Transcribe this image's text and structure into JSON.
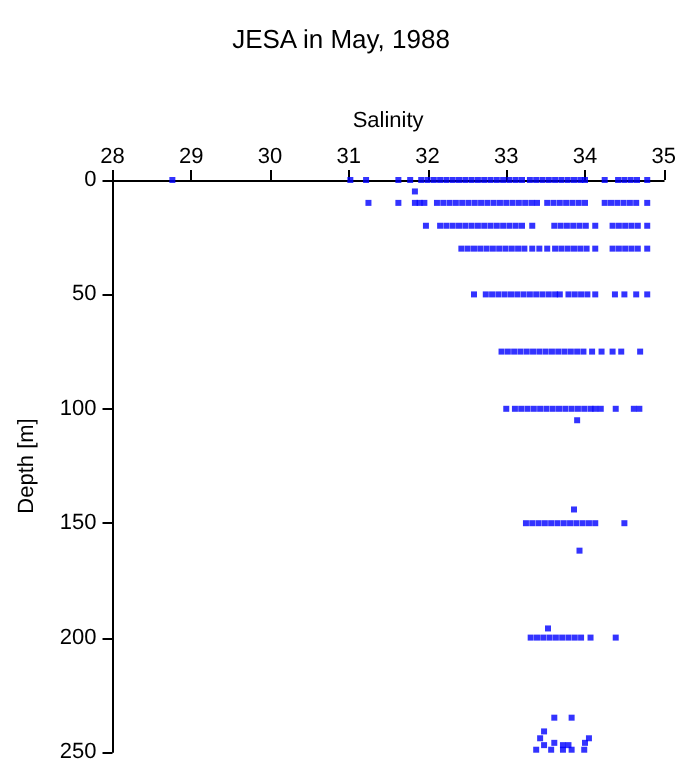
{
  "chart_data": {
    "type": "scatter",
    "title": "JESA in May, 1988",
    "xlabel": "Salinity",
    "ylabel": "Depth [m]",
    "xlim": [
      28,
      35
    ],
    "xticks": [
      28,
      29,
      30,
      31,
      32,
      33,
      34,
      35
    ],
    "ylim": [
      250,
      0
    ],
    "yticks": [
      0,
      50,
      100,
      150,
      200,
      250
    ],
    "grid": false,
    "marker": "square",
    "series": [
      {
        "color": "#0000ff",
        "x": [
          28.76,
          31.02,
          31.22,
          31.63,
          31.78,
          31.92,
          32.0,
          32.08,
          32.16,
          32.24,
          32.32,
          32.4,
          32.48,
          32.56,
          32.64,
          32.72,
          32.8,
          32.88,
          32.96,
          33.04,
          33.12,
          33.2,
          33.3,
          33.38,
          33.46,
          33.54,
          33.62,
          33.7,
          33.78,
          33.86,
          33.94,
          34.0,
          34.25,
          34.42,
          34.5,
          34.58,
          34.66,
          34.79
        ],
        "values": [
          0,
          0,
          0,
          0,
          0,
          0,
          0,
          0,
          0,
          0,
          0,
          0,
          0,
          0,
          0,
          0,
          0,
          0,
          0,
          0,
          0,
          0,
          0,
          0,
          0,
          0,
          0,
          0,
          0,
          0,
          0,
          0,
          0,
          0,
          0,
          0,
          0,
          0
        ]
      },
      {
        "color": "#0000ff",
        "x": [
          31.25,
          31.63,
          31.84,
          31.9,
          31.96,
          32.12,
          32.2,
          32.28,
          32.36,
          32.44,
          32.52,
          32.6,
          32.68,
          32.76,
          32.84,
          32.92,
          33.0,
          33.08,
          33.16,
          33.24,
          33.32,
          33.39,
          33.52,
          33.6,
          33.68,
          33.76,
          33.84,
          33.92,
          34.0,
          34.25,
          34.33,
          34.41,
          34.49,
          34.57,
          34.65,
          34.79
        ],
        "values": [
          10,
          10,
          10,
          10,
          10,
          10,
          10,
          10,
          10,
          10,
          10,
          10,
          10,
          10,
          10,
          10,
          10,
          10,
          10,
          10,
          10,
          10,
          10,
          10,
          10,
          10,
          10,
          10,
          10,
          10,
          10,
          10,
          10,
          10,
          10,
          10
        ]
      },
      {
        "color": "#0000ff",
        "x": [
          31.98,
          32.16,
          32.24,
          32.32,
          32.4,
          32.48,
          32.56,
          32.64,
          32.72,
          32.8,
          32.88,
          32.96,
          33.04,
          33.12,
          33.2,
          33.33,
          33.61,
          33.69,
          33.77,
          33.85,
          33.93,
          34.01,
          34.13,
          34.35,
          34.43,
          34.51,
          34.59,
          34.67,
          34.79
        ],
        "values": [
          20,
          20,
          20,
          20,
          20,
          20,
          20,
          20,
          20,
          20,
          20,
          20,
          20,
          20,
          20,
          20,
          20,
          20,
          20,
          20,
          20,
          20,
          20,
          20,
          20,
          20,
          20,
          20,
          20
        ]
      },
      {
        "color": "#0000ff",
        "x": [
          32.43,
          32.51,
          32.59,
          32.67,
          32.75,
          32.83,
          32.91,
          32.99,
          33.07,
          33.15,
          33.23,
          33.33,
          33.42,
          33.52,
          33.62,
          33.7,
          33.78,
          33.86,
          33.94,
          34.02,
          34.13,
          34.35,
          34.43,
          34.51,
          34.59,
          34.67,
          34.79
        ],
        "values": [
          30,
          30,
          30,
          30,
          30,
          30,
          30,
          30,
          30,
          30,
          30,
          30,
          30,
          30,
          30,
          30,
          30,
          30,
          30,
          30,
          30,
          30,
          30,
          30,
          30,
          30,
          30
        ]
      },
      {
        "color": "#0000ff",
        "x": [
          32.59,
          32.74,
          32.82,
          32.9,
          32.98,
          33.06,
          33.14,
          33.22,
          33.3,
          33.38,
          33.46,
          33.54,
          33.62,
          33.68,
          33.79,
          33.87,
          33.95,
          34.03,
          34.13,
          34.38,
          34.5,
          34.65,
          34.79
        ],
        "values": [
          50,
          50,
          50,
          50,
          50,
          50,
          50,
          50,
          50,
          50,
          50,
          50,
          50,
          50,
          50,
          50,
          50,
          50,
          50,
          50,
          50,
          50,
          50
        ]
      },
      {
        "color": "#0000ff",
        "x": [
          32.94,
          33.02,
          33.1,
          33.18,
          33.26,
          33.34,
          33.42,
          33.5,
          33.58,
          33.66,
          33.74,
          33.82,
          33.9,
          33.98,
          34.09,
          34.21,
          34.35,
          34.46,
          34.7
        ],
        "values": [
          75,
          75,
          75,
          75,
          75,
          75,
          75,
          75,
          75,
          75,
          75,
          75,
          75,
          75,
          75,
          75,
          75,
          75,
          75
        ]
      },
      {
        "color": "#0000ff",
        "x": [
          33.0,
          33.11,
          33.19,
          33.27,
          33.35,
          33.43,
          33.51,
          33.59,
          33.67,
          33.75,
          33.83,
          33.91,
          33.99,
          34.07,
          34.13,
          34.2,
          34.39,
          34.62,
          34.69
        ],
        "values": [
          100,
          100,
          100,
          100,
          100,
          100,
          100,
          100,
          100,
          100,
          100,
          100,
          100,
          100,
          100,
          100,
          100,
          100,
          100
        ]
      },
      {
        "color": "#0000ff",
        "x": [
          33.25,
          33.33,
          33.41,
          33.49,
          33.57,
          33.65,
          33.73,
          33.81,
          33.89,
          33.97,
          34.05,
          34.13,
          34.5
        ],
        "values": [
          150,
          150,
          150,
          150,
          150,
          150,
          150,
          150,
          150,
          150,
          150,
          150,
          150
        ]
      },
      {
        "color": "#0000ff",
        "x": [
          33.31,
          33.39,
          33.47,
          33.55,
          33.63,
          33.71,
          33.79,
          33.87,
          33.95,
          34.07,
          34.39
        ],
        "values": [
          200,
          200,
          200,
          200,
          200,
          200,
          200,
          200,
          200,
          200,
          200
        ]
      },
      {
        "color": "#0000ff",
        "x": [
          31.84,
          33.9,
          33.86,
          33.93,
          33.53,
          33.61,
          33.83,
          33.48,
          33.43,
          34.05,
          33.61,
          34.0,
          33.48,
          33.72,
          33.79,
          33.38,
          33.57,
          33.72,
          33.83,
          33.99
        ],
        "values": [
          5,
          105,
          144,
          162,
          196,
          235,
          235,
          241,
          244,
          244,
          246,
          246,
          247,
          247,
          247,
          249,
          249,
          249,
          249,
          249
        ]
      }
    ]
  }
}
